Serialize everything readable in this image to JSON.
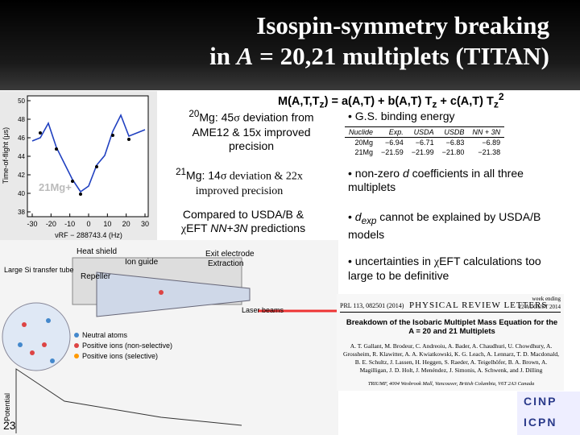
{
  "title": {
    "line1": "Isospin-symmetry breaking",
    "line2": [
      "in ",
      "A",
      " = 20,21 multiplets (TITAN)"
    ]
  },
  "equation": [
    "M(A,T,T",
    "z",
    ") = a(A,T) + b(A,T) T",
    "z",
    " + c(A,T) T",
    "z",
    "2"
  ],
  "notes": [
    [
      "20",
      "Mg: 45",
      "σ",
      " deviation from AME12 & 15x improved precision"
    ],
    [
      "21",
      "Mg: 14",
      "σ",
      " deviation & 22x improved precision"
    ],
    [
      "Compared to USDA/B & ",
      "χ",
      "EFT ",
      "NN+3N",
      " predictions"
    ]
  ],
  "bullets": [
    [
      "• G.S. binding energy"
    ],
    [
      "• non-zero ",
      "d",
      " coefficients in all three multiplets"
    ],
    [
      "• ",
      "d",
      "exp",
      " cannot be explained by USDA/B models"
    ],
    [
      "• uncertainties in ",
      "χ",
      "EFT calculations too large to be definitive"
    ]
  ],
  "table": {
    "header": [
      "Nuclide",
      "Exp.",
      "USDA",
      "USDB",
      "NN + 3N"
    ],
    "rows": [
      [
        "20Mg",
        "−6.94",
        "−6.71",
        "−6.83",
        "−6.89"
      ],
      [
        "21Mg",
        "−21.59",
        "−21.99",
        "−21.80",
        "−21.38"
      ]
    ]
  },
  "plot": {
    "ylabel": "Time-of-flight (μs)",
    "xlabel": "νRF − 288743.4 (Hz)",
    "species": "21Mg+",
    "yticks": [
      50,
      48,
      46,
      44,
      42,
      40,
      38
    ],
    "xticks": [
      -30,
      -20,
      -10,
      0,
      10,
      20,
      30
    ]
  },
  "diagram": {
    "labels": [
      "Heat shield",
      "Repeller",
      "Ion guide",
      "Exit electrode",
      "Extraction",
      "Laser beams",
      "Large Si transfer tube",
      "Potential"
    ],
    "legend": [
      "Neutral atoms",
      "Positive ions (non-selective)",
      "Positive ions (selective)"
    ]
  },
  "paper": {
    "citation": "PRL 113, 082501 (2014)",
    "journal": "PHYSICAL REVIEW LETTERS",
    "week": "week ending",
    "date": "22 AUGUST 2014",
    "title": "Breakdown of the Isobaric Multiplet Mass Equation for the A = 20 and 21 Multiplets",
    "authors": "A. T. Gallant, M. Brodeur, C. Andreoiu, A. Bader, A. Chaudhuri, U. Chowdhury, A. Grossheim, R. Klawitter, A. A. Kwiatkowski, K. G. Leach, A. Lennarz, T. D. Macdonald, B. E. Schultz, J. Lassen, H. Heggen, S. Raeder, A. Teigelhöfer, B. A. Brown, A. Magilligan, J. D. Holt, J. Menéndez, J. Simonis, A. Schwenk, and J. Dilling",
    "affiliation": "TRIUMF, 4004 Wesbrook Mall, Vancouver, British Columbia, V6T 2A3 Canada"
  },
  "page_number": "23",
  "logo": [
    "CINP",
    "ICPN"
  ]
}
